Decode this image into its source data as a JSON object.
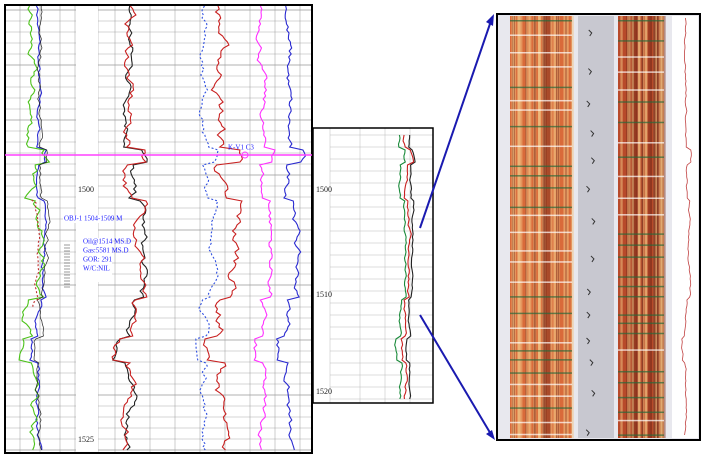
{
  "left_log": {
    "depth_labels": [
      "1500",
      "1525"
    ],
    "marker_label": "K-V1 C3",
    "annotations": [
      "OBJ-1 1504-1509 M",
      "Oil@1514 MS.D",
      "Gas:5581 MS.D",
      "GOR: 291",
      "W/C:NIL"
    ]
  },
  "zoom_log": {
    "depth_labels": [
      "1500",
      "1510",
      "1520"
    ]
  }
}
